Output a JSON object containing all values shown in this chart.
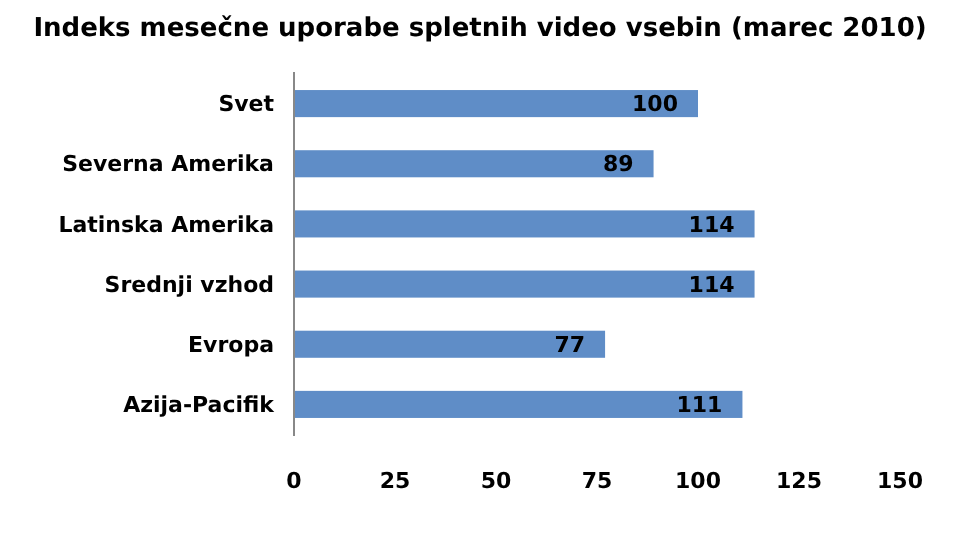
{
  "chart_data": {
    "type": "bar",
    "orientation": "horizontal",
    "title": "Indeks mesečne uporabe spletnih video vsebin (marec 2010)",
    "categories": [
      "Svet",
      "Severna Amerika",
      "Latinska Amerika",
      "Srednji vzhod",
      "Evropa",
      "Azija-Pacifik"
    ],
    "values": [
      100,
      89,
      114,
      114,
      77,
      111
    ],
    "color": "#5f8dc7",
    "xlim": [
      0,
      150
    ],
    "xticks": [
      0,
      25,
      50,
      75,
      100,
      125,
      150
    ],
    "data_labels": true
  }
}
